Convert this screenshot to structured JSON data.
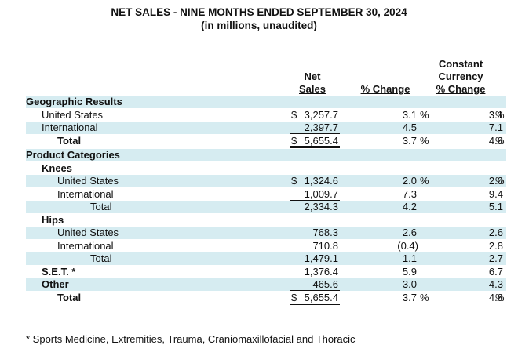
{
  "title": "NET SALES - NINE MONTHS ENDED SEPTEMBER 30, 2024",
  "subtitle": "(in millions, unaudited)",
  "columns": {
    "net_sales": [
      "Net",
      "Sales"
    ],
    "change": "% Change",
    "cc": [
      "Constant",
      "Currency",
      "% Change"
    ]
  },
  "rows": [
    {
      "label": "Geographic Results",
      "bold": true
    },
    {
      "label": "United States",
      "dollar": "$",
      "sales": "3,257.7",
      "change": "3.1",
      "cc": "3.1",
      "pct": "%"
    },
    {
      "label": "International",
      "sales": "2,397.7",
      "change": "4.5",
      "cc": "7.1"
    },
    {
      "label": "Total",
      "bold": true,
      "dollar": "$",
      "sales": "5,655.4",
      "change": "3.7",
      "cc": "4.8",
      "pct": "%"
    },
    {
      "label": "Product Categories",
      "bold": true
    },
    {
      "label": "Knees",
      "bold": true
    },
    {
      "label": "United States",
      "dollar": "$",
      "sales": "1,324.6",
      "change": "2.0",
      "cc": "2.0",
      "pct": "%"
    },
    {
      "label": "International",
      "sales": "1,009.7",
      "change": "7.3",
      "cc": "9.4"
    },
    {
      "label": "Total",
      "sales": "2,334.3",
      "change": "4.2",
      "cc": "5.1"
    },
    {
      "label": "Hips",
      "bold": true
    },
    {
      "label": "United States",
      "sales": "768.3",
      "change": "2.6",
      "cc": "2.6"
    },
    {
      "label": "International",
      "sales": "710.8",
      "change": "(0.4)",
      "cc": "2.8"
    },
    {
      "label": "Total",
      "sales": "1,479.1",
      "change": "1.1",
      "cc": "2.7"
    },
    {
      "label": "S.E.T. *",
      "bold": true,
      "sales": "1,376.4",
      "change": "5.9",
      "cc": "6.7"
    },
    {
      "label": "Other",
      "bold": true,
      "sales": "465.6",
      "change": "3.0",
      "cc": "4.3"
    },
    {
      "label": "Total",
      "bold": true,
      "dollar": "$",
      "sales": "5,655.4",
      "change": "3.7",
      "cc": "4.8",
      "pct": "%"
    }
  ],
  "footnote": "* Sports Medicine, Extremities, Trauma, Craniomaxillofacial and Thoracic"
}
